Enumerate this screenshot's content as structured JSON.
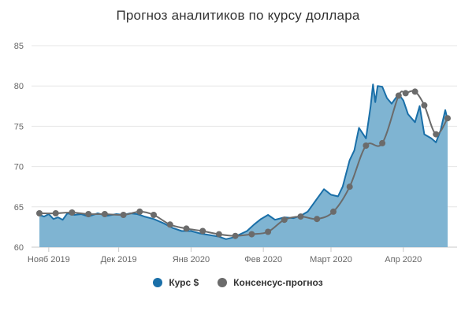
{
  "chart_data": {
    "type": "line",
    "title": "Прогноз аналитиков по курсу доллара",
    "xlabel": "",
    "ylabel": "",
    "ylim": [
      60,
      85
    ],
    "yticks": [
      60,
      65,
      70,
      75,
      80,
      85
    ],
    "xlim": [
      "2019-10-28",
      "2020-04-20"
    ],
    "xticks": [
      {
        "label": "Нояб 2019",
        "date": "2019-11-01"
      },
      {
        "label": "Дек 2019",
        "date": "2019-12-01"
      },
      {
        "label": "Янв 2020",
        "date": "2020-01-01"
      },
      {
        "label": "Фев 2020",
        "date": "2020-02-01"
      },
      {
        "label": "Март 2020",
        "date": "2020-03-01"
      },
      {
        "label": "Апр 2020",
        "date": "2020-04-01"
      }
    ],
    "grid": true,
    "legend_position": "bottom",
    "series": [
      {
        "name": "Курс $",
        "type": "area",
        "color": "#1a6fa8",
        "fill": "#7fb4d2",
        "points": [
          [
            "2019-10-28",
            64.0
          ],
          [
            "2019-10-30",
            63.8
          ],
          [
            "2019-11-01",
            64.1
          ],
          [
            "2019-11-03",
            63.5
          ],
          [
            "2019-11-05",
            63.7
          ],
          [
            "2019-11-07",
            63.4
          ],
          [
            "2019-11-09",
            64.2
          ],
          [
            "2019-11-12",
            64.0
          ],
          [
            "2019-11-15",
            64.1
          ],
          [
            "2019-11-18",
            63.8
          ],
          [
            "2019-11-22",
            64.2
          ],
          [
            "2019-11-26",
            63.9
          ],
          [
            "2019-11-30",
            64.1
          ],
          [
            "2019-12-03",
            64.0
          ],
          [
            "2019-12-06",
            64.2
          ],
          [
            "2019-12-09",
            64.1
          ],
          [
            "2019-12-12",
            63.8
          ],
          [
            "2019-12-16",
            63.5
          ],
          [
            "2019-12-20",
            63.0
          ],
          [
            "2019-12-24",
            62.4
          ],
          [
            "2019-12-28",
            62.0
          ],
          [
            "2020-01-01",
            62.0
          ],
          [
            "2020-01-05",
            61.7
          ],
          [
            "2020-01-09",
            61.5
          ],
          [
            "2020-01-13",
            61.3
          ],
          [
            "2020-01-16",
            61.0
          ],
          [
            "2020-01-19",
            61.2
          ],
          [
            "2020-01-22",
            61.6
          ],
          [
            "2020-01-25",
            62.0
          ],
          [
            "2020-01-28",
            62.8
          ],
          [
            "2020-01-31",
            63.5
          ],
          [
            "2020-02-03",
            64.0
          ],
          [
            "2020-02-06",
            63.4
          ],
          [
            "2020-02-10",
            63.7
          ],
          [
            "2020-02-14",
            63.6
          ],
          [
            "2020-02-17",
            63.9
          ],
          [
            "2020-02-20",
            64.4
          ],
          [
            "2020-02-24",
            66.0
          ],
          [
            "2020-02-27",
            67.2
          ],
          [
            "2020-03-01",
            66.5
          ],
          [
            "2020-03-04",
            66.3
          ],
          [
            "2020-03-06",
            67.5
          ],
          [
            "2020-03-09",
            70.8
          ],
          [
            "2020-03-11",
            72.0
          ],
          [
            "2020-03-13",
            74.8
          ],
          [
            "2020-03-16",
            73.5
          ],
          [
            "2020-03-18",
            77.5
          ],
          [
            "2020-03-19",
            80.2
          ],
          [
            "2020-03-20",
            78.0
          ],
          [
            "2020-03-21",
            80.0
          ],
          [
            "2020-03-23",
            79.9
          ],
          [
            "2020-03-25",
            78.5
          ],
          [
            "2020-03-27",
            77.8
          ],
          [
            "2020-03-30",
            79.0
          ],
          [
            "2020-04-01",
            78.2
          ],
          [
            "2020-04-03",
            76.5
          ],
          [
            "2020-04-06",
            75.5
          ],
          [
            "2020-04-08",
            77.5
          ],
          [
            "2020-04-10",
            74.0
          ],
          [
            "2020-04-13",
            73.5
          ],
          [
            "2020-04-15",
            73.0
          ],
          [
            "2020-04-17",
            74.5
          ],
          [
            "2020-04-19",
            77.0
          ],
          [
            "2020-04-20",
            75.8
          ]
        ]
      },
      {
        "name": "Консенсус-прогноз",
        "type": "line",
        "color": "#6b6b6b",
        "points": [
          [
            "2019-10-28",
            64.2
          ],
          [
            "2019-11-04",
            64.2
          ],
          [
            "2019-11-11",
            64.3
          ],
          [
            "2019-11-18",
            64.1
          ],
          [
            "2019-11-25",
            64.1
          ],
          [
            "2019-12-03",
            64.0
          ],
          [
            "2019-12-10",
            64.4
          ],
          [
            "2019-12-16",
            64.0
          ],
          [
            "2019-12-23",
            62.8
          ],
          [
            "2019-12-30",
            62.3
          ],
          [
            "2020-01-06",
            62.0
          ],
          [
            "2020-01-13",
            61.6
          ],
          [
            "2020-01-20",
            61.4
          ],
          [
            "2020-01-27",
            61.6
          ],
          [
            "2020-02-03",
            61.9
          ],
          [
            "2020-02-10",
            63.4
          ],
          [
            "2020-02-17",
            63.8
          ],
          [
            "2020-02-24",
            63.5
          ],
          [
            "2020-03-02",
            64.4
          ],
          [
            "2020-03-09",
            67.5
          ],
          [
            "2020-03-16",
            72.6
          ],
          [
            "2020-03-23",
            72.9
          ],
          [
            "2020-03-30",
            78.8
          ],
          [
            "2020-04-02",
            79.1
          ],
          [
            "2020-04-06",
            79.3
          ],
          [
            "2020-04-10",
            77.6
          ],
          [
            "2020-04-15",
            74.0
          ],
          [
            "2020-04-20",
            76.0
          ]
        ]
      }
    ]
  }
}
